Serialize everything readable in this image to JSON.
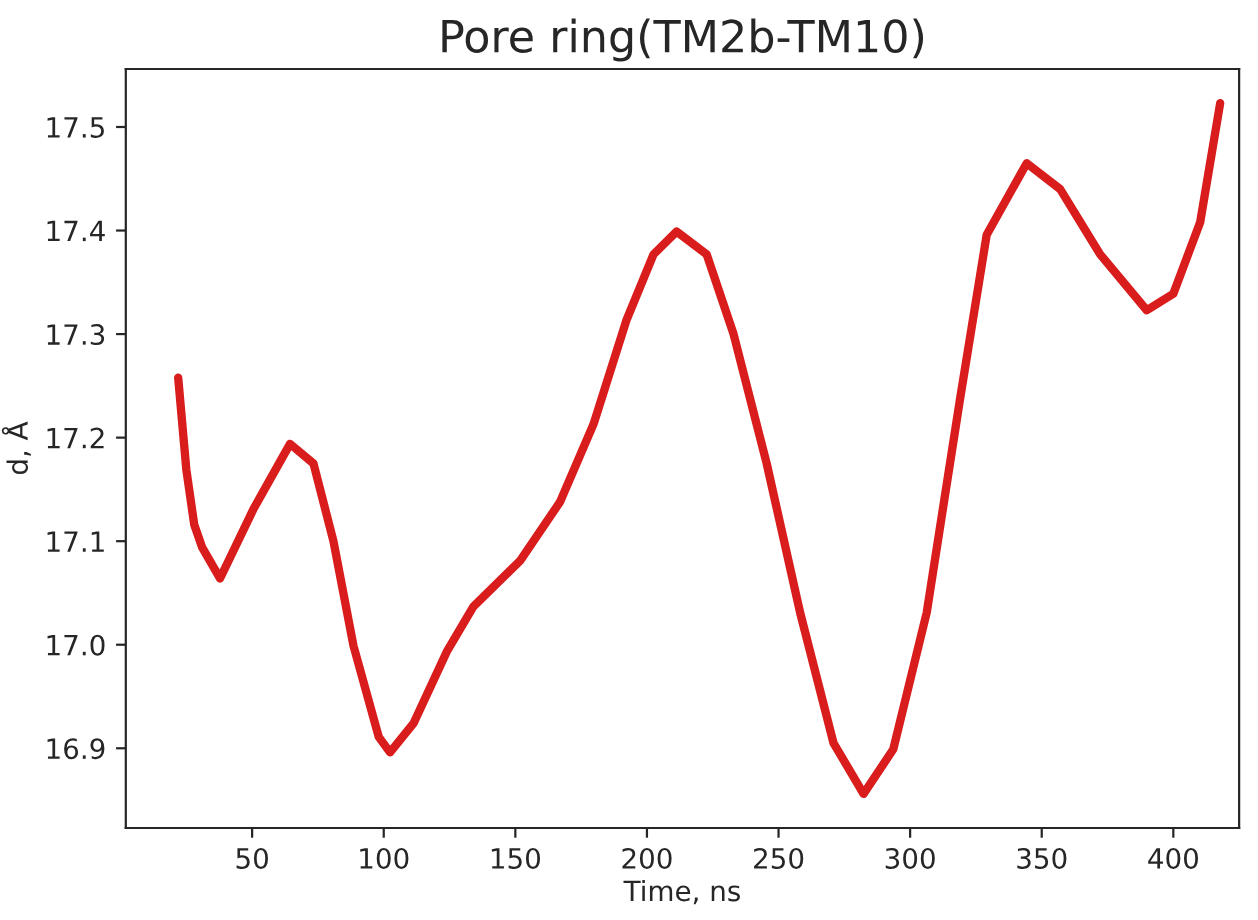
{
  "chart_data": {
    "type": "line",
    "title": "Pore ring(TM2b-TM10)",
    "xlabel": "Time, ns",
    "ylabel": "d, Å",
    "xlim": [
      2,
      425
    ],
    "xticks": [
      50,
      100,
      150,
      200,
      250,
      300,
      350,
      400
    ],
    "ylim": [
      16.823,
      17.556
    ],
    "yticks": [
      16.9,
      {
        "value": 17.0,
        "label": "17.0"
      },
      17.1,
      17.2,
      17.3,
      17.4,
      17.5
    ],
    "grid": false,
    "legend": false,
    "marker": "none",
    "line_style": "solid",
    "series": [
      {
        "color": "#d91c1c",
        "x": [
          21.9,
          25,
          28,
          31,
          37.8,
          50.5,
          64.4,
          73.3,
          80.9,
          88.5,
          98.1,
          102.4,
          111.3,
          123.9,
          134.1,
          151.8,
          167,
          179.7,
          192.3,
          202.5,
          211.3,
          222.7,
          232.8,
          245.5,
          258.2,
          270.9,
          282.3,
          293.6,
          306.3,
          319,
          329.1,
          344.3,
          357,
          372.2,
          389.9,
          400,
          410.2,
          417.8
        ],
        "values": [
          17.258,
          17.169,
          17.116,
          17.094,
          17.064,
          17.131,
          17.194,
          17.175,
          17.1,
          16.999,
          16.911,
          16.896,
          16.924,
          16.993,
          17.037,
          17.081,
          17.138,
          17.213,
          17.314,
          17.377,
          17.399,
          17.377,
          17.301,
          17.175,
          17.031,
          16.905,
          16.856,
          16.899,
          17.031,
          17.238,
          17.396,
          17.465,
          17.44,
          17.377,
          17.323,
          17.339,
          17.408,
          17.523
        ]
      }
    ]
  }
}
